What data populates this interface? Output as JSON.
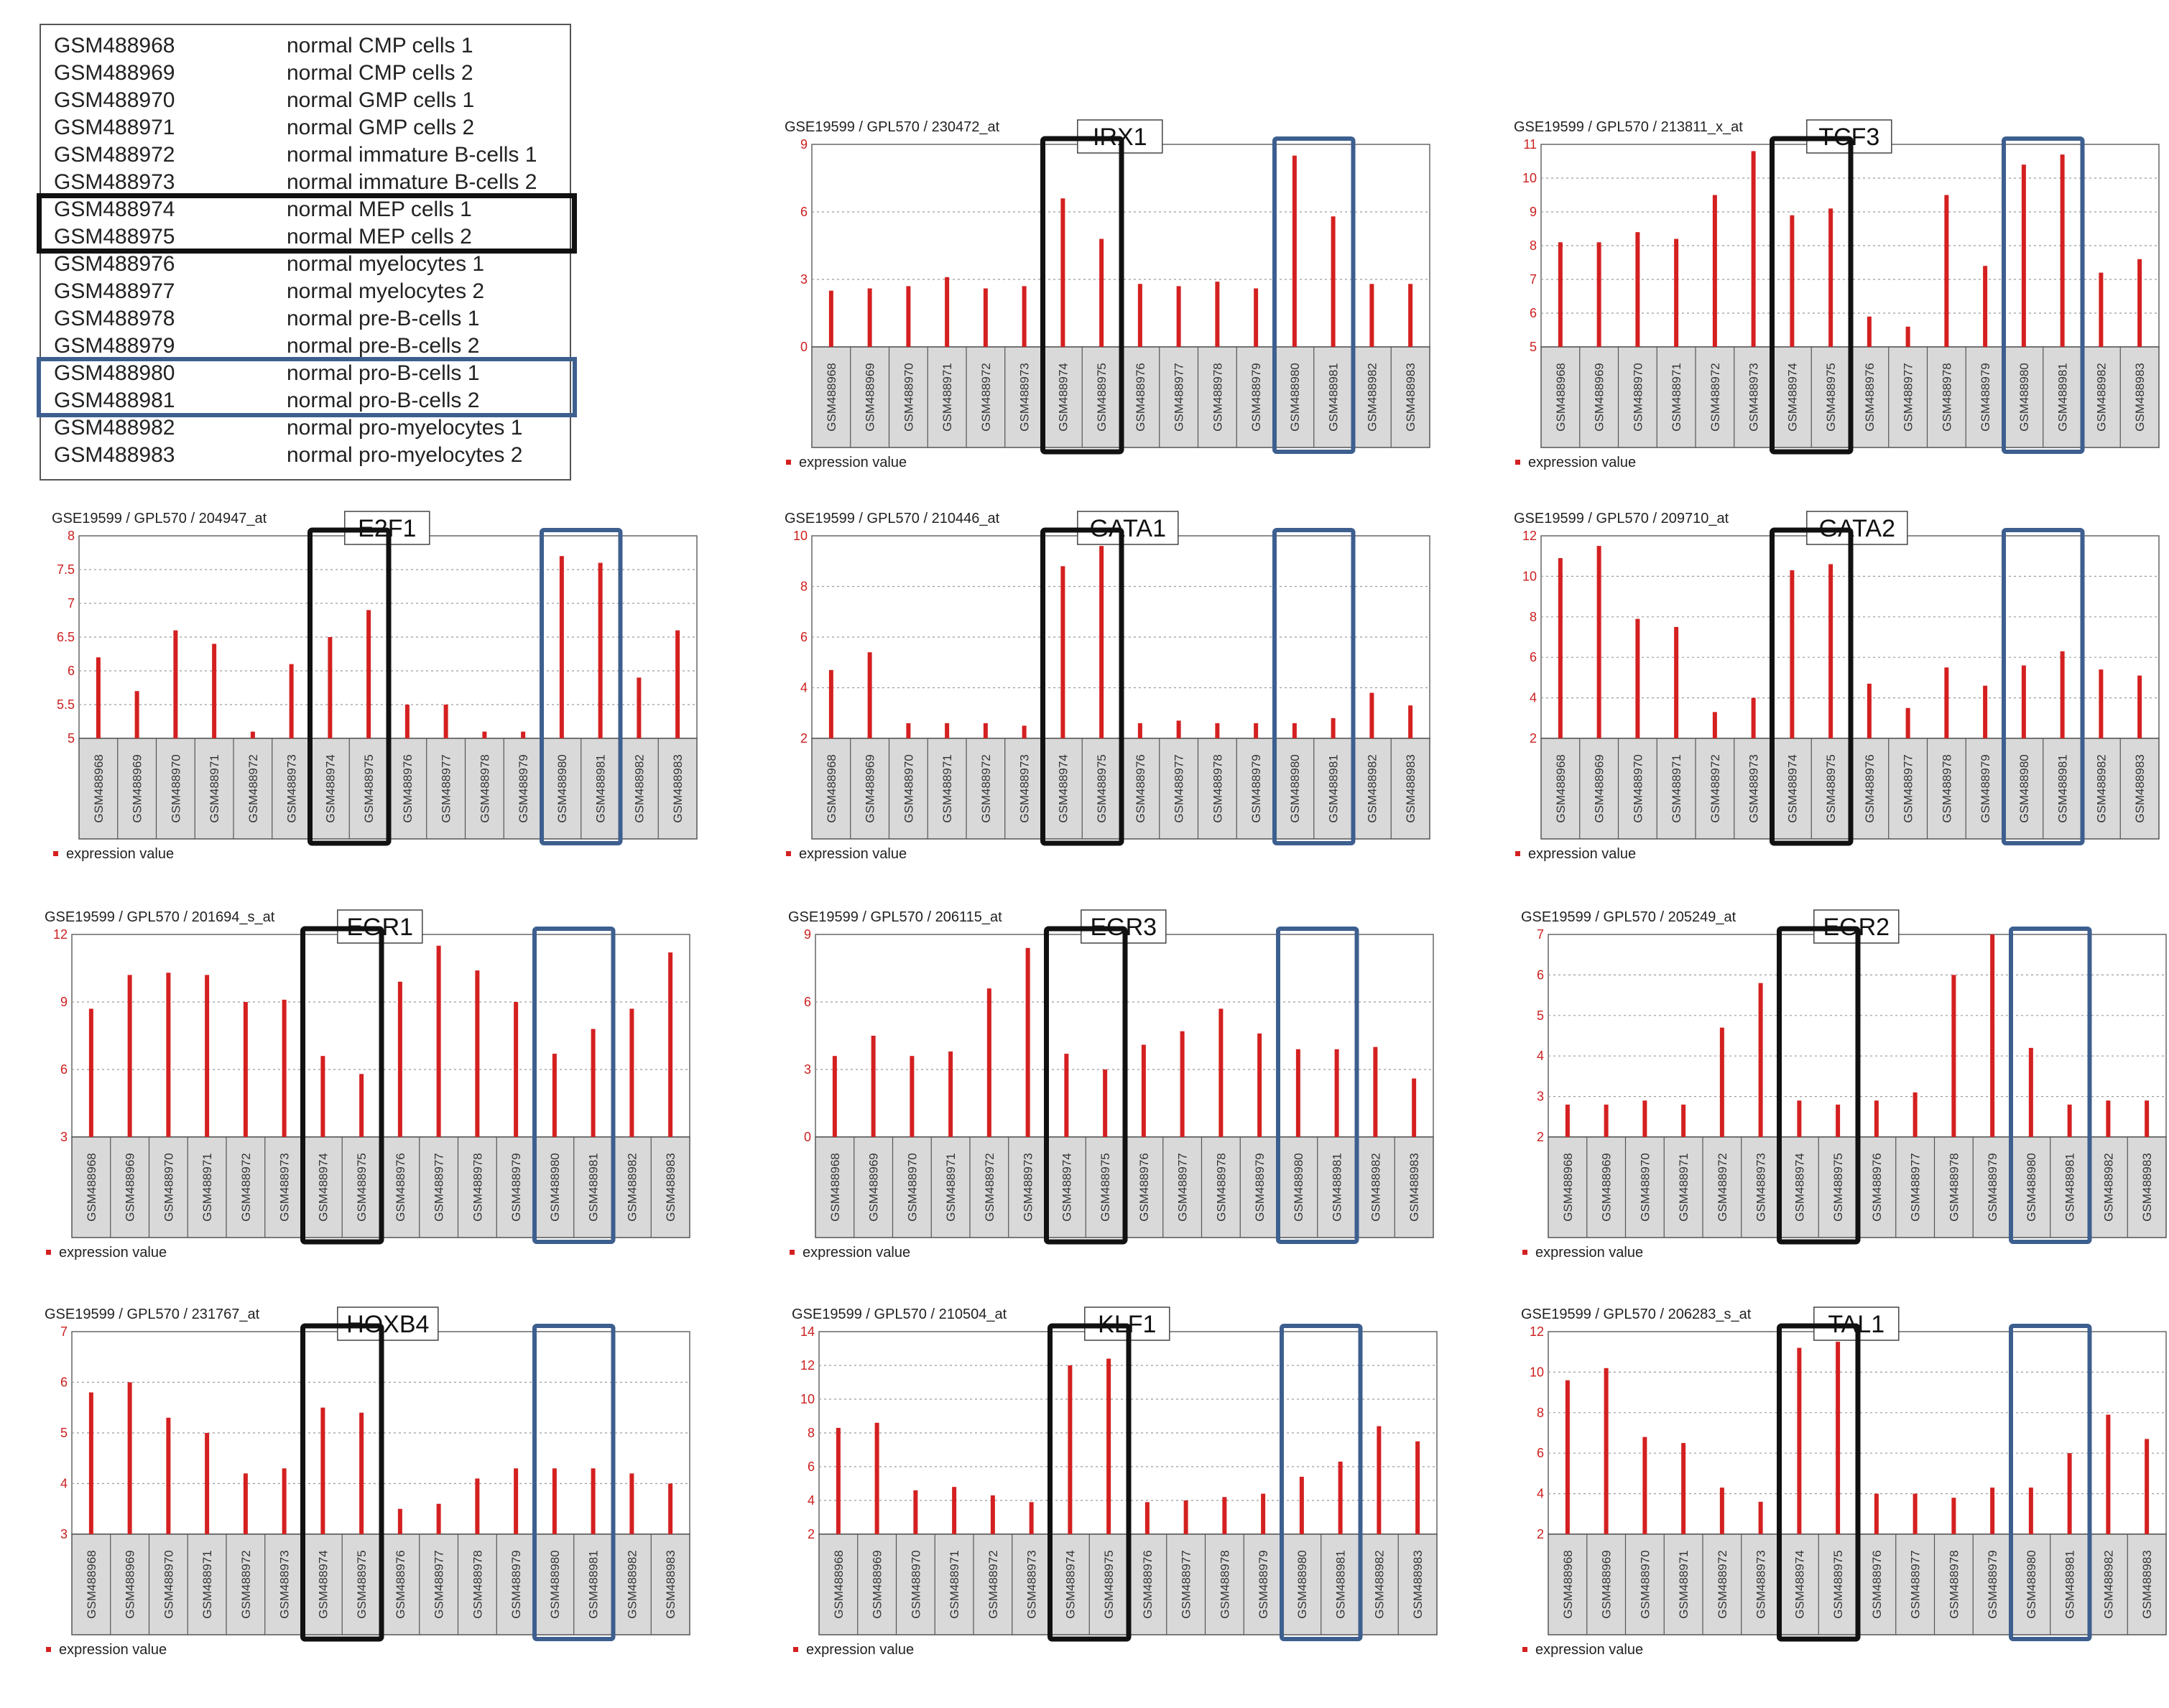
{
  "samples_table": [
    {
      "gsm": "GSM488968",
      "desc": "normal CMP cells 1"
    },
    {
      "gsm": "GSM488969",
      "desc": "normal CMP cells 2"
    },
    {
      "gsm": "GSM488970",
      "desc": "normal GMP cells 1"
    },
    {
      "gsm": "GSM488971",
      "desc": "normal GMP cells 2"
    },
    {
      "gsm": "GSM488972",
      "desc": "normal immature B-cells 1"
    },
    {
      "gsm": "GSM488973",
      "desc": "normal immature B-cells 2"
    },
    {
      "gsm": "GSM488974",
      "desc": "normal MEP cells 1"
    },
    {
      "gsm": "GSM488975",
      "desc": "normal MEP cells 2"
    },
    {
      "gsm": "GSM488976",
      "desc": "normal myelocytes 1"
    },
    {
      "gsm": "GSM488977",
      "desc": "normal myelocytes 2"
    },
    {
      "gsm": "GSM488978",
      "desc": "normal pre-B-cells 1"
    },
    {
      "gsm": "GSM488979",
      "desc": "normal pre-B-cells 2"
    },
    {
      "gsm": "GSM488980",
      "desc": "normal pro-B-cells 1"
    },
    {
      "gsm": "GSM488981",
      "desc": "normal pro-B-cells 2"
    },
    {
      "gsm": "GSM488982",
      "desc": "normal pro-myelocytes 1"
    },
    {
      "gsm": "GSM488983",
      "desc": "normal pro-myelocytes 2"
    }
  ],
  "colors": {
    "bar": "#d42020",
    "grid": "#9a9a9a",
    "label_bg": "#d9d9d9",
    "highlight_black": "#111111",
    "highlight_blue": "#3d5f8f",
    "tick": "#cc1f1f"
  },
  "chart_data": [
    {
      "type": "bar",
      "title": "IRX1",
      "subtitle": "GSE19599 / GPL570 / 230472_at",
      "legend": "expression value",
      "categories": [
        "GSM488968",
        "GSM488969",
        "GSM488970",
        "GSM488971",
        "GSM488972",
        "GSM488973",
        "GSM488974",
        "GSM488975",
        "GSM488976",
        "GSM488977",
        "GSM488978",
        "GSM488979",
        "GSM488980",
        "GSM488981",
        "GSM488982",
        "GSM488983"
      ],
      "values": [
        2.5,
        2.6,
        2.7,
        3.1,
        2.6,
        2.7,
        6.6,
        4.8,
        2.8,
        2.7,
        2.9,
        2.6,
        8.5,
        5.8,
        2.8,
        2.8
      ],
      "ylim": [
        0,
        9
      ],
      "yticks": [
        0,
        3,
        6,
        9
      ],
      "grid": true
    },
    {
      "type": "bar",
      "title": "TCF3",
      "subtitle": "GSE19599 / GPL570 / 213811_x_at",
      "legend": "expression value",
      "categories": [
        "GSM488968",
        "GSM488969",
        "GSM488970",
        "GSM488971",
        "GSM488972",
        "GSM488973",
        "GSM488974",
        "GSM488975",
        "GSM488976",
        "GSM488977",
        "GSM488978",
        "GSM488979",
        "GSM488980",
        "GSM488981",
        "GSM488982",
        "GSM488983"
      ],
      "values": [
        8.1,
        8.1,
        8.4,
        8.2,
        9.5,
        10.8,
        8.9,
        9.1,
        5.9,
        5.6,
        9.5,
        7.4,
        10.4,
        10.7,
        7.2,
        7.6
      ],
      "ylim": [
        5,
        11
      ],
      "yticks": [
        5,
        6,
        7,
        8,
        9,
        10,
        11
      ],
      "grid": true
    },
    {
      "type": "bar",
      "title": "E2F1",
      "subtitle": "GSE19599 / GPL570 / 204947_at",
      "legend": "expression value",
      "categories": [
        "GSM488968",
        "GSM488969",
        "GSM488970",
        "GSM488971",
        "GSM488972",
        "GSM488973",
        "GSM488974",
        "GSM488975",
        "GSM488976",
        "GSM488977",
        "GSM488978",
        "GSM488979",
        "GSM488980",
        "GSM488981",
        "GSM488982",
        "GSM488983"
      ],
      "values": [
        6.2,
        5.7,
        6.6,
        6.4,
        5.1,
        6.1,
        6.5,
        6.9,
        5.5,
        5.5,
        5.1,
        5.1,
        7.7,
        7.6,
        5.9,
        6.6
      ],
      "ylim": [
        5,
        8
      ],
      "yticks": [
        5,
        5.5,
        6,
        6.5,
        7,
        7.5,
        8
      ],
      "grid": true
    },
    {
      "type": "bar",
      "title": "GATA1",
      "subtitle": "GSE19599 / GPL570 / 210446_at",
      "legend": "expression value",
      "categories": [
        "GSM488968",
        "GSM488969",
        "GSM488970",
        "GSM488971",
        "GSM488972",
        "GSM488973",
        "GSM488974",
        "GSM488975",
        "GSM488976",
        "GSM488977",
        "GSM488978",
        "GSM488979",
        "GSM488980",
        "GSM488981",
        "GSM488982",
        "GSM488983"
      ],
      "values": [
        4.7,
        5.4,
        2.6,
        2.6,
        2.6,
        2.5,
        8.8,
        9.6,
        2.6,
        2.7,
        2.6,
        2.6,
        2.6,
        2.8,
        3.8,
        3.3
      ],
      "ylim": [
        2,
        10
      ],
      "yticks": [
        2,
        4,
        6,
        8,
        10
      ],
      "grid": true
    },
    {
      "type": "bar",
      "title": "GATA2",
      "subtitle": "GSE19599 / GPL570 / 209710_at",
      "legend": "expression value",
      "categories": [
        "GSM488968",
        "GSM488969",
        "GSM488970",
        "GSM488971",
        "GSM488972",
        "GSM488973",
        "GSM488974",
        "GSM488975",
        "GSM488976",
        "GSM488977",
        "GSM488978",
        "GSM488979",
        "GSM488980",
        "GSM488981",
        "GSM488982",
        "GSM488983"
      ],
      "values": [
        10.9,
        11.5,
        7.9,
        7.5,
        3.3,
        4.0,
        10.3,
        10.6,
        4.7,
        3.5,
        5.5,
        4.6,
        5.6,
        6.3,
        5.4,
        5.1
      ],
      "ylim": [
        2,
        12
      ],
      "yticks": [
        2,
        4,
        6,
        8,
        10,
        12
      ],
      "grid": true
    },
    {
      "type": "bar",
      "title": "EGR1",
      "subtitle": "GSE19599 / GPL570 / 201694_s_at",
      "legend": "expression value",
      "categories": [
        "GSM488968",
        "GSM488969",
        "GSM488970",
        "GSM488971",
        "GSM488972",
        "GSM488973",
        "GSM488974",
        "GSM488975",
        "GSM488976",
        "GSM488977",
        "GSM488978",
        "GSM488979",
        "GSM488980",
        "GSM488981",
        "GSM488982",
        "GSM488983"
      ],
      "values": [
        8.7,
        10.2,
        10.3,
        10.2,
        9.0,
        9.1,
        6.6,
        5.8,
        9.9,
        11.5,
        10.4,
        9.0,
        6.7,
        7.8,
        8.7,
        11.2
      ],
      "ylim": [
        3,
        12
      ],
      "yticks": [
        3,
        6,
        9,
        12
      ],
      "grid": true
    },
    {
      "type": "bar",
      "title": "EGR3",
      "subtitle": "GSE19599 / GPL570 / 206115_at",
      "legend": "expression value",
      "categories": [
        "GSM488968",
        "GSM488969",
        "GSM488970",
        "GSM488971",
        "GSM488972",
        "GSM488973",
        "GSM488974",
        "GSM488975",
        "GSM488976",
        "GSM488977",
        "GSM488978",
        "GSM488979",
        "GSM488980",
        "GSM488981",
        "GSM488982",
        "GSM488983"
      ],
      "values": [
        3.6,
        4.5,
        3.6,
        3.8,
        6.6,
        8.4,
        3.7,
        3.0,
        4.1,
        4.7,
        5.7,
        4.6,
        3.9,
        3.9,
        4.0,
        2.6
      ],
      "ylim": [
        0,
        9
      ],
      "yticks": [
        0,
        3,
        6,
        9
      ],
      "grid": true
    },
    {
      "type": "bar",
      "title": "EGR2",
      "subtitle": "GSE19599 / GPL570 / 205249_at",
      "legend": "expression value",
      "categories": [
        "GSM488968",
        "GSM488969",
        "GSM488970",
        "GSM488971",
        "GSM488972",
        "GSM488973",
        "GSM488974",
        "GSM488975",
        "GSM488976",
        "GSM488977",
        "GSM488978",
        "GSM488979",
        "GSM488980",
        "GSM488981",
        "GSM488982",
        "GSM488983"
      ],
      "values": [
        2.8,
        2.8,
        2.9,
        2.8,
        4.7,
        5.8,
        2.9,
        2.8,
        2.9,
        3.1,
        6.0,
        7.0,
        4.2,
        2.8,
        2.9,
        2.9
      ],
      "ylim": [
        2,
        7
      ],
      "yticks": [
        2,
        3,
        4,
        5,
        6,
        7
      ],
      "grid": true
    },
    {
      "type": "bar",
      "title": "HOXB4",
      "subtitle": "GSE19599 / GPL570 / 231767_at",
      "legend": "expression value",
      "categories": [
        "GSM488968",
        "GSM488969",
        "GSM488970",
        "GSM488971",
        "GSM488972",
        "GSM488973",
        "GSM488974",
        "GSM488975",
        "GSM488976",
        "GSM488977",
        "GSM488978",
        "GSM488979",
        "GSM488980",
        "GSM488981",
        "GSM488982",
        "GSM488983"
      ],
      "values": [
        5.8,
        6.0,
        5.3,
        5.0,
        4.2,
        4.3,
        5.5,
        5.4,
        3.5,
        3.6,
        4.1,
        4.3,
        4.3,
        4.3,
        4.2,
        4.0
      ],
      "ylim": [
        3,
        7
      ],
      "yticks": [
        3,
        4,
        5,
        6,
        7
      ],
      "grid": true
    },
    {
      "type": "bar",
      "title": "KLF1",
      "subtitle": "GSE19599 / GPL570 / 210504_at",
      "legend": "expression value",
      "categories": [
        "GSM488968",
        "GSM488969",
        "GSM488970",
        "GSM488971",
        "GSM488972",
        "GSM488973",
        "GSM488974",
        "GSM488975",
        "GSM488976",
        "GSM488977",
        "GSM488978",
        "GSM488979",
        "GSM488980",
        "GSM488981",
        "GSM488982",
        "GSM488983"
      ],
      "values": [
        8.3,
        8.6,
        4.6,
        4.8,
        4.3,
        3.9,
        12.0,
        12.4,
        3.9,
        4.0,
        4.2,
        4.4,
        5.4,
        6.3,
        8.4,
        7.5
      ],
      "ylim": [
        2,
        14
      ],
      "yticks": [
        2,
        4,
        6,
        8,
        10,
        12,
        14
      ],
      "grid": true
    },
    {
      "type": "bar",
      "title": "TAL1",
      "subtitle": "GSE19599 / GPL570 / 206283_s_at",
      "legend": "expression value",
      "categories": [
        "GSM488968",
        "GSM488969",
        "GSM488970",
        "GSM488971",
        "GSM488972",
        "GSM488973",
        "GSM488974",
        "GSM488975",
        "GSM488976",
        "GSM488977",
        "GSM488978",
        "GSM488979",
        "GSM488980",
        "GSM488981",
        "GSM488982",
        "GSM488983"
      ],
      "values": [
        9.6,
        10.2,
        6.8,
        6.5,
        4.3,
        3.6,
        11.2,
        11.5,
        4.0,
        4.0,
        3.8,
        4.3,
        4.3,
        6.0,
        7.9,
        6.7
      ],
      "ylim": [
        2,
        12
      ],
      "yticks": [
        2,
        4,
        6,
        8,
        10,
        12
      ],
      "grid": true
    }
  ]
}
